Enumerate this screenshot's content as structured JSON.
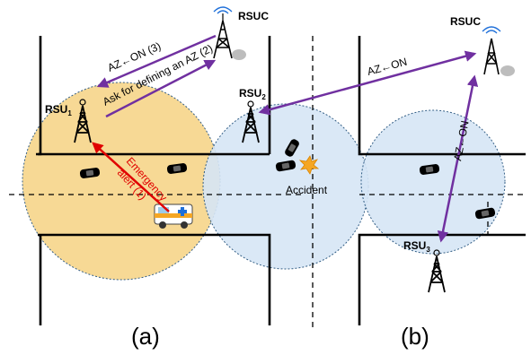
{
  "labels": {
    "rsuc_a": "RSUC",
    "rsuc_b": "RSUC",
    "rsu1_main": "RSU",
    "rsu1_sub": "1",
    "rsu2_main": "RSU",
    "rsu2_sub": "2",
    "rsu3_main": "RSU",
    "rsu3_sub": "3",
    "accident": "Accident",
    "panel_a": "(a)",
    "panel_b": "(b)"
  },
  "arrows": {
    "az_on_3": "AZ←ON (3)",
    "ask_define_az_2": "Ask for defining an AZ (2)",
    "emergency_line1": "Emergency",
    "emergency_line2": "alert (1)",
    "az_on_top_b": "AZ←ON",
    "az_on_vertical_b": "AZ←ON"
  },
  "colors": {
    "yellow_zone": "#f7d58a",
    "blue_zone": "#d6e6f6",
    "purple_arrow": "#7030a0",
    "red_arrow": "#e00000"
  }
}
